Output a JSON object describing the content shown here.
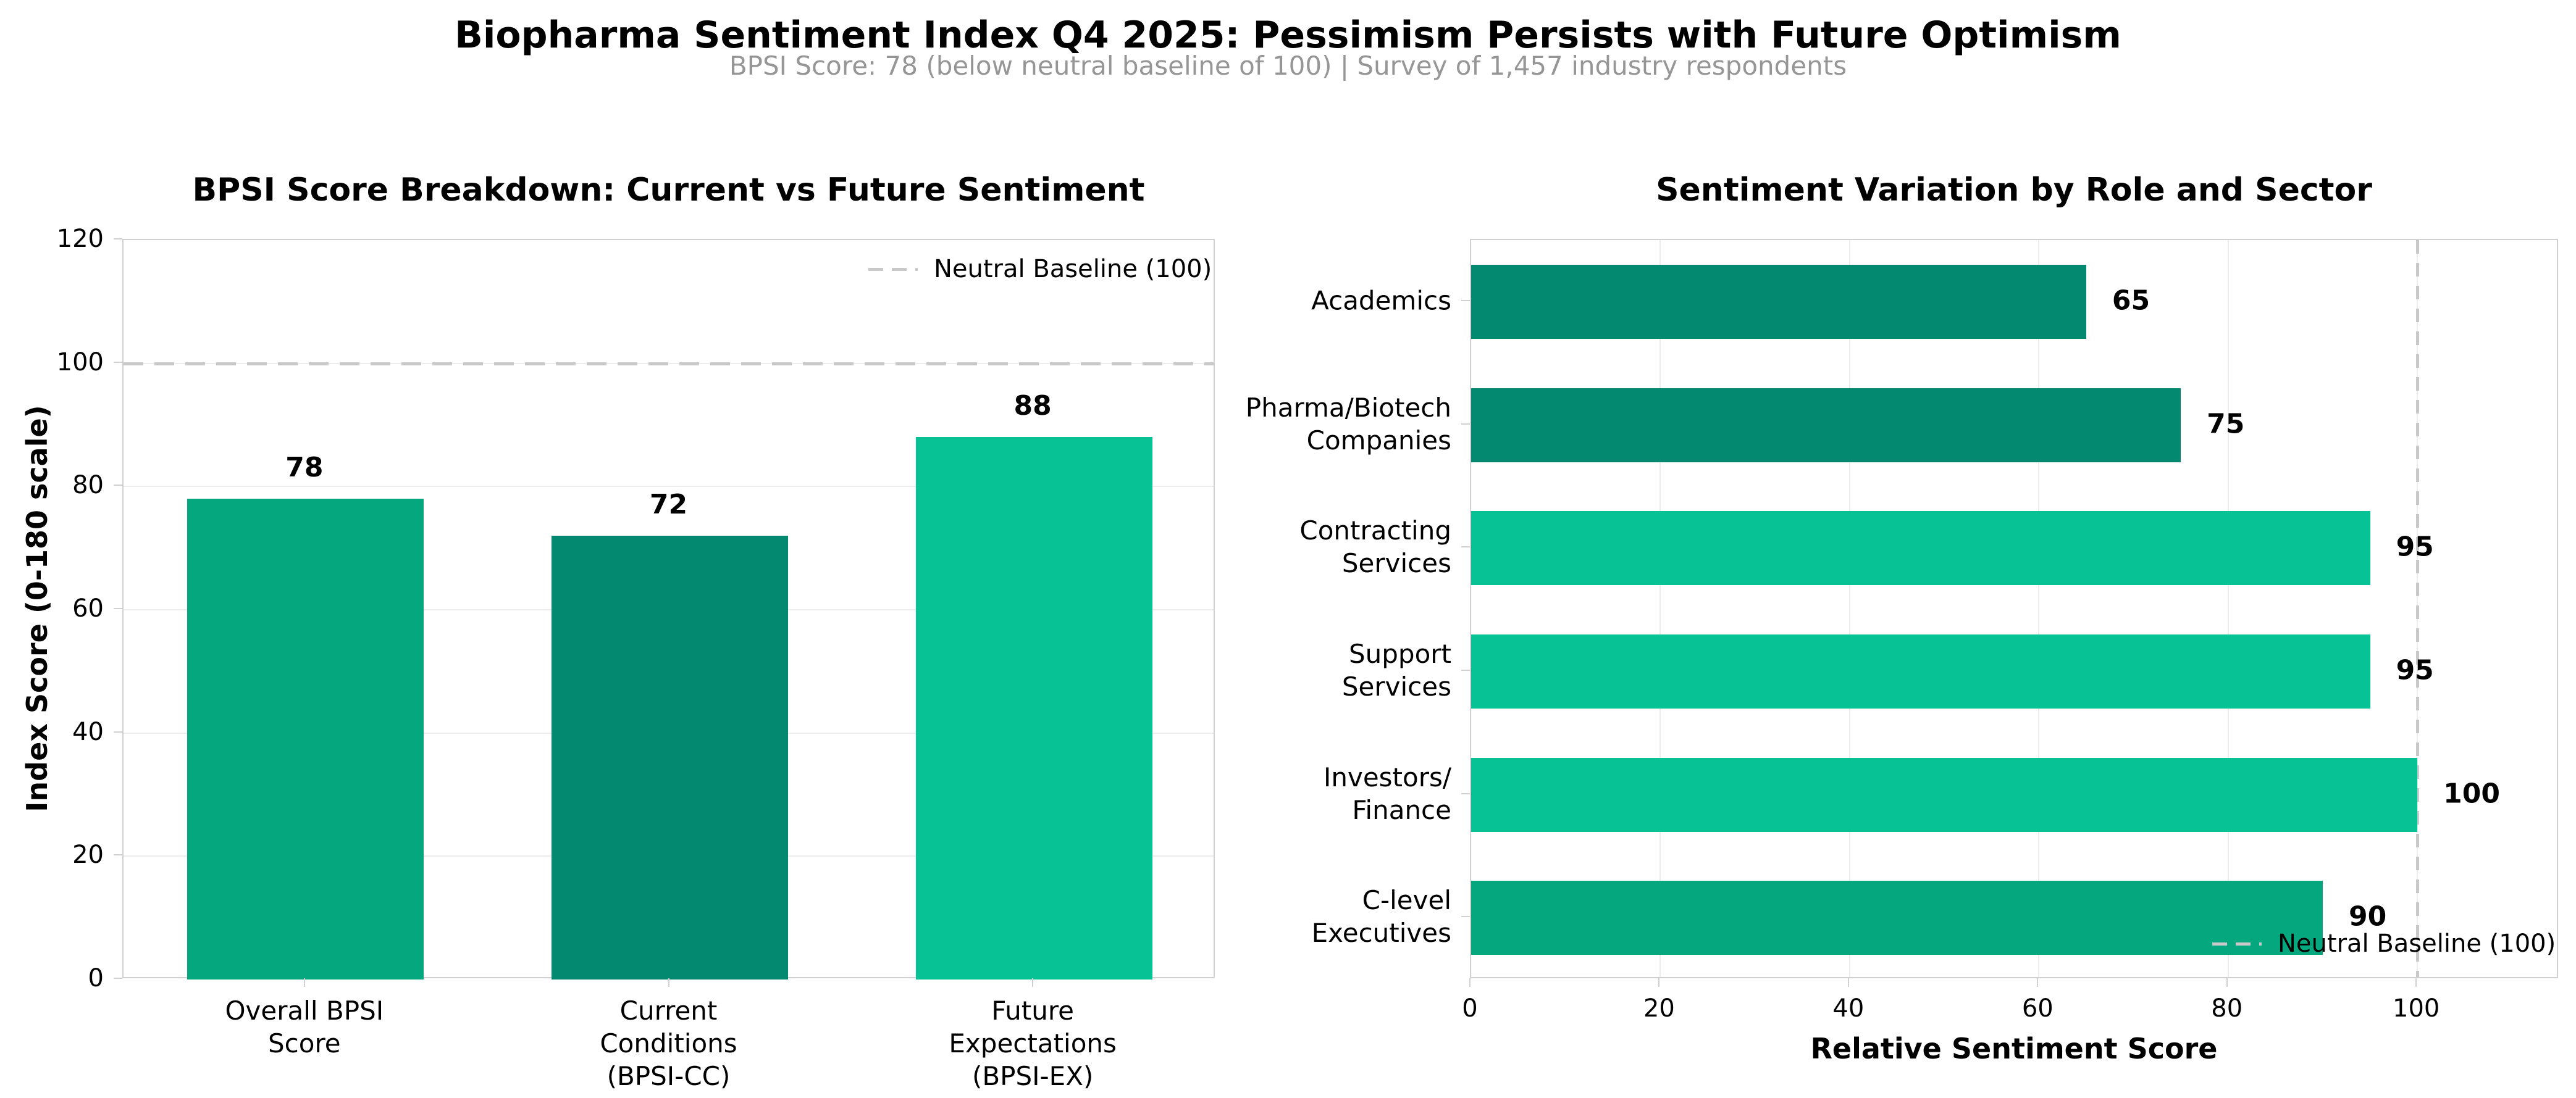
{
  "page": {
    "title": "Biopharma Sentiment Index Q4 2025: Pessimism Persists with Future Optimism",
    "subtitle": "BPSI Score: 78 (below neutral baseline of 100) | Survey of 1,457 industry respondents"
  },
  "colors": {
    "dark_green": "#048971",
    "medium_green": "#05a87e",
    "light_green": "#06c294",
    "baseline_gray": "#c9c9c9",
    "gridline": "#ececec",
    "spine": "#d0d0d0",
    "subtitle_gray": "#969696",
    "text": "#000000"
  },
  "chart_data": [
    {
      "type": "bar",
      "title": "BPSI Score Breakdown: Current vs Future Sentiment",
      "categories": [
        "Overall BPSI\nScore",
        "Current\nConditions\n(BPSI-CC)",
        "Future\nExpectations\n(BPSI-EX)"
      ],
      "values": [
        78,
        72,
        88
      ],
      "bar_colors": [
        "#05a87e",
        "#048971",
        "#06c294"
      ],
      "ylabel": "Index Score (0-180 scale)",
      "ylim": [
        0,
        120
      ],
      "yticks": [
        0,
        20,
        40,
        60,
        80,
        100,
        120
      ],
      "grid": true,
      "baseline": {
        "value": 100,
        "label": "Neutral Baseline (100)"
      },
      "legend_position": "upper right"
    },
    {
      "type": "bar-horizontal",
      "title": "Sentiment Variation by Role and Sector",
      "categories": [
        "Academics",
        "Pharma/Biotech\nCompanies",
        "Contracting\nServices",
        "Support\nServices",
        "Investors/\nFinance",
        "C-level\nExecutives"
      ],
      "values": [
        65,
        75,
        95,
        95,
        100,
        90
      ],
      "bar_colors": [
        "#048971",
        "#048971",
        "#06c294",
        "#06c294",
        "#06c294",
        "#05a87e"
      ],
      "xlabel": "Relative Sentiment Score",
      "xlim": [
        0,
        115
      ],
      "xticks": [
        0,
        20,
        40,
        60,
        80,
        100
      ],
      "grid": true,
      "baseline": {
        "value": 100,
        "label": "Neutral Baseline (100)"
      },
      "legend_position": "lower right"
    }
  ]
}
